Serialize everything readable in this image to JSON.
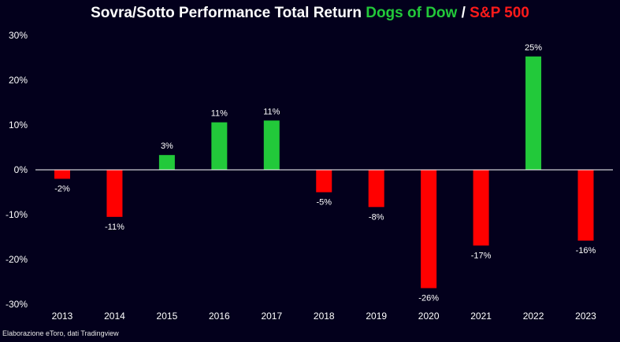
{
  "header": {
    "title_main": "Sovra/Sotto Performance Total Return",
    "title_series_a": "Dogs of Dow",
    "title_sep": "/",
    "title_series_b": "S&P 500"
  },
  "footnote": "Elaborazione eToro, dati Tradingview",
  "colors": {
    "background": "#03001c",
    "positive": "#22c93a",
    "negative": "#ff0000",
    "axis": "#ffffff"
  },
  "chart_data": {
    "type": "bar",
    "title": "Sovra/Sotto Performance Total Return Dogs of Dow / S&P 500",
    "categories": [
      "2013",
      "2014",
      "2015",
      "2016",
      "2017",
      "2018",
      "2019",
      "2020",
      "2021",
      "2022",
      "2023"
    ],
    "values": [
      -2,
      -11,
      3,
      11,
      11,
      -5,
      -8,
      -26,
      -17,
      25,
      -16
    ],
    "plotted_values": [
      -2,
      -10.5,
      3.3,
      10.6,
      11,
      -5,
      -8.3,
      -26.4,
      -16.9,
      25.3,
      -15.8
    ],
    "labels": [
      "-2%",
      "-11%",
      "3%",
      "11%",
      "11%",
      "-5%",
      "-8%",
      "-26%",
      "-17%",
      "25%",
      "-16%"
    ],
    "yticks": [
      "30%",
      "20%",
      "10%",
      "0%",
      "-10%",
      "-20%",
      "-30%"
    ],
    "ytick_values": [
      30,
      20,
      10,
      0,
      -10,
      -20,
      -30
    ],
    "ylim": [
      -30,
      30
    ],
    "grid": false,
    "legend": "none"
  }
}
